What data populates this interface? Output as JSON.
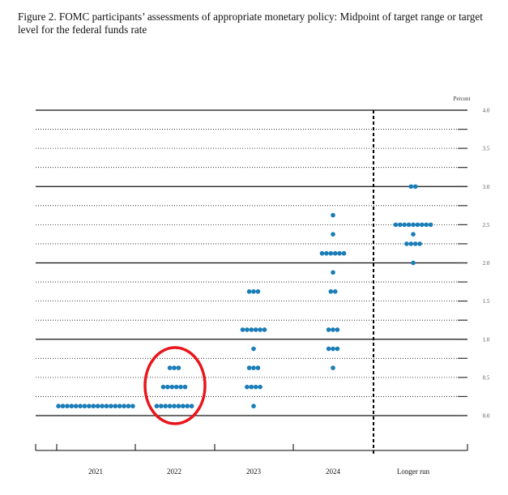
{
  "chart_data": {
    "type": "scatter",
    "title": "Figure 2.  FOMC participants’ assessments of appropriate monetary policy: Midpoint of target range or target level for the federal funds rate",
    "ylabel": "Percent",
    "ylim": [
      0,
      4
    ],
    "yticks": [
      "4.0",
      "3.5",
      "3.0",
      "2.5",
      "2.0",
      "1.5",
      "1.0",
      "0.5",
      "0.0"
    ],
    "categories": [
      "2021",
      "2022",
      "2023",
      "2024",
      "Longer run"
    ],
    "dot_color": "#1a7db8",
    "highlight_color": "#e8161b",
    "highlight_category": "2022",
    "dots": [
      {
        "category": "2021",
        "values": [
          {
            "rate": 0.125,
            "count": 18
          }
        ]
      },
      {
        "category": "2022",
        "values": [
          {
            "rate": 0.125,
            "count": 9
          },
          {
            "rate": 0.375,
            "count": 6
          },
          {
            "rate": 0.625,
            "count": 3
          }
        ]
      },
      {
        "category": "2023",
        "values": [
          {
            "rate": 0.125,
            "count": 1
          },
          {
            "rate": 0.375,
            "count": 4
          },
          {
            "rate": 0.625,
            "count": 3
          },
          {
            "rate": 0.875,
            "count": 1
          },
          {
            "rate": 1.125,
            "count": 6
          },
          {
            "rate": 1.625,
            "count": 3
          }
        ]
      },
      {
        "category": "2024",
        "values": [
          {
            "rate": 0.625,
            "count": 1
          },
          {
            "rate": 0.875,
            "count": 3
          },
          {
            "rate": 1.125,
            "count": 3
          },
          {
            "rate": 1.625,
            "count": 2
          },
          {
            "rate": 1.875,
            "count": 1
          },
          {
            "rate": 2.125,
            "count": 6
          },
          {
            "rate": 2.375,
            "count": 1
          },
          {
            "rate": 2.625,
            "count": 1
          }
        ]
      },
      {
        "category": "Longer run",
        "values": [
          {
            "rate": 2.0,
            "count": 1
          },
          {
            "rate": 2.25,
            "count": 4
          },
          {
            "rate": 2.375,
            "count": 1
          },
          {
            "rate": 2.5,
            "count": 9
          },
          {
            "rate": 3.0,
            "count": 2
          }
        ]
      }
    ]
  }
}
